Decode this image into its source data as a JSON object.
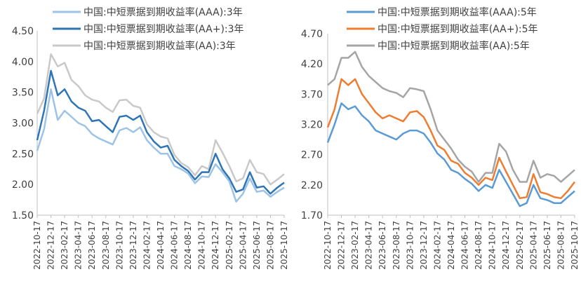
{
  "chart_data": [
    {
      "type": "line",
      "title": "",
      "xlabel": "",
      "ylabel": "",
      "ylim": [
        1.5,
        4.5
      ],
      "yticks": [
        "1.50",
        "2.00",
        "2.50",
        "3.00",
        "3.50",
        "4.00",
        "4.50"
      ],
      "xtick_labels": [
        "2022-10-17",
        "2022-12-17",
        "2023-02-17",
        "2023-04-17",
        "2023-06-17",
        "2023-08-17",
        "2023-10-17",
        "2023-12-17",
        "2024-02-17",
        "2024-04-17",
        "2024-06-17",
        "2024-08-17",
        "2024-10-17",
        "2024-12-17",
        "2025-02-17",
        "2025-04-17",
        "2025-06-17",
        "2025-08-17",
        "2025-10-17"
      ],
      "x_note": "monthly samples 2022-10 to 2025-10",
      "legend_position": "top",
      "grid": false,
      "series": [
        {
          "name": "中国:中短票据到期收益率(AAA):3年",
          "color": "#9DC3E6",
          "values": [
            2.55,
            2.9,
            3.55,
            3.05,
            3.2,
            3.1,
            3.0,
            2.95,
            2.82,
            2.75,
            2.7,
            2.65,
            2.88,
            2.92,
            2.85,
            2.93,
            2.72,
            2.6,
            2.5,
            2.5,
            2.3,
            2.25,
            2.18,
            2.02,
            2.13,
            2.12,
            2.33,
            2.2,
            2.05,
            1.72,
            1.85,
            2.1,
            1.88,
            1.9,
            1.8,
            1.88,
            1.95
          ]
        },
        {
          "name": "中国:中短票据到期收益率(AA+):3年",
          "color": "#2E75B6",
          "values": [
            2.72,
            3.2,
            3.85,
            3.45,
            3.55,
            3.35,
            3.25,
            3.2,
            3.03,
            3.05,
            2.95,
            2.85,
            3.1,
            3.12,
            3.05,
            3.12,
            2.85,
            2.7,
            2.6,
            2.63,
            2.4,
            2.3,
            2.22,
            2.08,
            2.2,
            2.2,
            2.5,
            2.25,
            2.1,
            1.88,
            1.92,
            2.2,
            1.95,
            1.97,
            1.85,
            1.95,
            2.03
          ]
        },
        {
          "name": "中国:中短票据到期收益率(AA):3年",
          "color": "#C9C9C9",
          "values": [
            3.15,
            3.4,
            4.12,
            3.92,
            3.98,
            3.7,
            3.6,
            3.45,
            3.38,
            3.35,
            3.25,
            3.18,
            3.37,
            3.38,
            3.28,
            3.25,
            2.98,
            2.85,
            2.78,
            2.75,
            2.48,
            2.35,
            2.28,
            2.15,
            2.3,
            2.25,
            2.72,
            2.52,
            2.3,
            2.05,
            2.1,
            2.4,
            2.2,
            2.17,
            2.0,
            2.08,
            2.17
          ]
        }
      ]
    },
    {
      "type": "line",
      "title": "",
      "xlabel": "",
      "ylabel": "",
      "ylim": [
        1.7,
        4.7
      ],
      "yticks": [
        "1.70",
        "2.20",
        "2.70",
        "3.20",
        "3.70",
        "4.20",
        "4.70"
      ],
      "xtick_labels": [
        "2022-10-17",
        "2022-12-17",
        "2023-02-17",
        "2023-04-17",
        "2023-06-17",
        "2023-08-17",
        "2023-10-17",
        "2023-12-17",
        "2024-02-17",
        "2024-04-17",
        "2024-06-17",
        "2024-08-17",
        "2024-10-17",
        "2024-12-17",
        "2025-02-17",
        "2025-04-17",
        "2025-06-17",
        "2025-08-17",
        "2025-10-17"
      ],
      "x_note": "monthly samples 2022-10 to 2025-10",
      "legend_position": "top",
      "grid": false,
      "series": [
        {
          "name": "中国:中短票据到期收益率(AAA):5年",
          "color": "#5B9BD5",
          "values": [
            2.9,
            3.2,
            3.55,
            3.45,
            3.5,
            3.35,
            3.25,
            3.1,
            3.05,
            3.0,
            2.95,
            3.05,
            3.1,
            3.1,
            3.05,
            2.9,
            2.72,
            2.62,
            2.45,
            2.4,
            2.3,
            2.22,
            2.1,
            2.2,
            2.15,
            2.45,
            2.25,
            2.05,
            1.85,
            1.9,
            2.2,
            1.98,
            1.95,
            1.9,
            1.9,
            2.0,
            2.1
          ]
        },
        {
          "name": "中国:中短票据到期收益率(AA+):5年",
          "color": "#ED7D31",
          "values": [
            3.15,
            3.45,
            3.95,
            3.85,
            3.95,
            3.7,
            3.55,
            3.4,
            3.3,
            3.35,
            3.3,
            3.25,
            3.4,
            3.42,
            3.32,
            3.1,
            2.85,
            2.78,
            2.6,
            2.55,
            2.4,
            2.32,
            2.2,
            2.32,
            2.28,
            2.65,
            2.42,
            2.2,
            1.98,
            2.0,
            2.38,
            2.08,
            2.05,
            2.0,
            1.98,
            2.1,
            2.25
          ]
        },
        {
          "name": "中国:中短票据到期收益率(AA):5年",
          "color": "#A5A5A5",
          "values": [
            3.85,
            3.95,
            4.3,
            4.3,
            4.4,
            4.15,
            4.0,
            3.9,
            3.8,
            3.75,
            3.72,
            3.65,
            3.8,
            3.78,
            3.75,
            3.45,
            3.1,
            2.95,
            2.8,
            2.62,
            2.5,
            2.42,
            2.25,
            2.4,
            2.4,
            2.88,
            2.75,
            2.45,
            2.25,
            2.25,
            2.6,
            2.32,
            2.38,
            2.35,
            2.25,
            2.35,
            2.45
          ]
        }
      ]
    }
  ]
}
